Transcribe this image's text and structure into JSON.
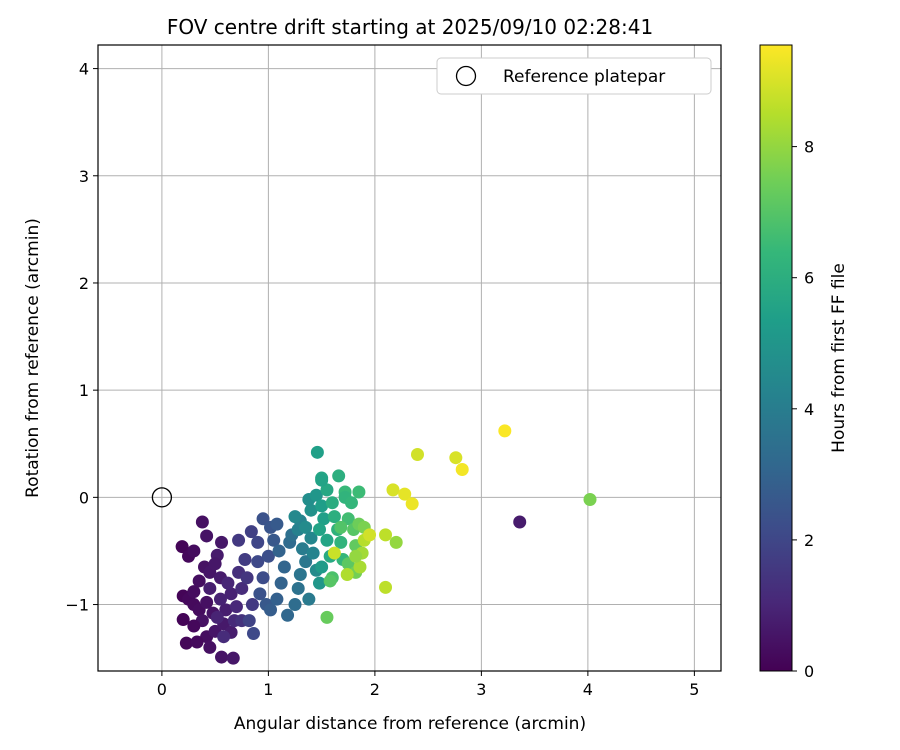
{
  "chart_data": {
    "type": "scatter",
    "title": "FOV centre drift starting at 2025/09/10 02:28:41",
    "xlabel": "Angular distance from reference (arcmin)",
    "ylabel": "Rotation from reference (arcmin)",
    "xlim": [
      -0.6,
      5.25
    ],
    "ylim": [
      -1.62,
      4.22
    ],
    "xticks": [
      0,
      1,
      2,
      3,
      4,
      5
    ],
    "yticks": [
      -1,
      0,
      1,
      2,
      3,
      4
    ],
    "grid": true,
    "legend": {
      "position": "top-right",
      "entries": [
        "Reference platepar"
      ]
    },
    "colorbar": {
      "label": "Hours from first FF file",
      "colormap": "viridis",
      "range": [
        0,
        9.55
      ],
      "ticks": [
        0,
        2,
        4,
        6,
        8
      ]
    },
    "reference_point": {
      "x": 0,
      "y": 0
    },
    "point_colormap_stops": [
      "#440154",
      "#482878",
      "#3e4a89",
      "#31688e",
      "#26828e",
      "#1f9e89",
      "#35b779",
      "#6ece58",
      "#b5de2b",
      "#fde725"
    ],
    "points": [
      {
        "x": 0.19,
        "y": -0.46,
        "h": 0.1
      },
      {
        "x": 0.25,
        "y": -0.55,
        "h": 0.2
      },
      {
        "x": 0.3,
        "y": -0.5,
        "h": 0.3
      },
      {
        "x": 0.38,
        "y": -0.23,
        "h": 0.4
      },
      {
        "x": 0.42,
        "y": -0.36,
        "h": 0.5
      },
      {
        "x": 0.56,
        "y": -0.42,
        "h": 0.6
      },
      {
        "x": 0.52,
        "y": -0.54,
        "h": 0.7
      },
      {
        "x": 0.2,
        "y": -0.92,
        "h": 0.1
      },
      {
        "x": 0.25,
        "y": -0.95,
        "h": 0.2
      },
      {
        "x": 0.3,
        "y": -0.88,
        "h": 0.3
      },
      {
        "x": 0.35,
        "y": -0.78,
        "h": 0.35
      },
      {
        "x": 0.4,
        "y": -0.65,
        "h": 0.45
      },
      {
        "x": 0.45,
        "y": -0.7,
        "h": 0.55
      },
      {
        "x": 0.5,
        "y": -0.62,
        "h": 0.6
      },
      {
        "x": 0.55,
        "y": -0.75,
        "h": 0.7
      },
      {
        "x": 0.3,
        "y": -1.0,
        "h": 0.25
      },
      {
        "x": 0.35,
        "y": -1.05,
        "h": 0.3
      },
      {
        "x": 0.42,
        "y": -0.98,
        "h": 0.4
      },
      {
        "x": 0.48,
        "y": -1.08,
        "h": 0.5
      },
      {
        "x": 0.38,
        "y": -1.15,
        "h": 0.45
      },
      {
        "x": 0.2,
        "y": -1.14,
        "h": 0.1
      },
      {
        "x": 0.3,
        "y": -1.2,
        "h": 0.2
      },
      {
        "x": 0.42,
        "y": -1.3,
        "h": 0.35
      },
      {
        "x": 0.5,
        "y": -1.25,
        "h": 0.55
      },
      {
        "x": 0.58,
        "y": -1.18,
        "h": 0.65
      },
      {
        "x": 0.65,
        "y": -1.26,
        "h": 0.75
      },
      {
        "x": 0.23,
        "y": -1.36,
        "h": 0.15
      },
      {
        "x": 0.33,
        "y": -1.35,
        "h": 0.25
      },
      {
        "x": 0.45,
        "y": -1.4,
        "h": 0.4
      },
      {
        "x": 0.56,
        "y": -1.49,
        "h": 0.5
      },
      {
        "x": 0.67,
        "y": -1.5,
        "h": 0.6
      },
      {
        "x": 0.6,
        "y": -1.05,
        "h": 0.8
      },
      {
        "x": 0.65,
        "y": -0.9,
        "h": 0.9
      },
      {
        "x": 0.62,
        "y": -0.8,
        "h": 1.0
      },
      {
        "x": 0.55,
        "y": -0.95,
        "h": 0.9
      },
      {
        "x": 0.45,
        "y": -0.85,
        "h": 0.8
      },
      {
        "x": 0.52,
        "y": -1.12,
        "h": 0.95
      },
      {
        "x": 0.7,
        "y": -1.02,
        "h": 1.1
      },
      {
        "x": 0.75,
        "y": -0.85,
        "h": 1.2
      },
      {
        "x": 0.72,
        "y": -0.7,
        "h": 1.3
      },
      {
        "x": 0.68,
        "y": -1.15,
        "h": 1.15
      },
      {
        "x": 0.58,
        "y": -1.3,
        "h": 1.2
      },
      {
        "x": 0.75,
        "y": -1.15,
        "h": 1.4
      },
      {
        "x": 0.85,
        "y": -1.0,
        "h": 1.6
      },
      {
        "x": 0.8,
        "y": -0.75,
        "h": 1.5
      },
      {
        "x": 0.78,
        "y": -0.58,
        "h": 1.7
      },
      {
        "x": 0.72,
        "y": -0.4,
        "h": 1.6
      },
      {
        "x": 0.84,
        "y": -0.32,
        "h": 1.8
      },
      {
        "x": 0.9,
        "y": -0.42,
        "h": 2.0
      },
      {
        "x": 0.86,
        "y": -1.27,
        "h": 2.1
      },
      {
        "x": 0.82,
        "y": -1.15,
        "h": 1.9
      },
      {
        "x": 0.9,
        "y": -0.6,
        "h": 2.1
      },
      {
        "x": 0.95,
        "y": -0.75,
        "h": 2.2
      },
      {
        "x": 1.0,
        "y": -0.55,
        "h": 2.3
      },
      {
        "x": 0.95,
        "y": -0.2,
        "h": 2.4
      },
      {
        "x": 1.02,
        "y": -0.28,
        "h": 2.5
      },
      {
        "x": 1.05,
        "y": -0.4,
        "h": 2.6
      },
      {
        "x": 1.08,
        "y": -0.25,
        "h": 2.7
      },
      {
        "x": 0.92,
        "y": -0.9,
        "h": 2.4
      },
      {
        "x": 0.98,
        "y": -1.0,
        "h": 2.6
      },
      {
        "x": 1.02,
        "y": -1.05,
        "h": 2.8
      },
      {
        "x": 1.08,
        "y": -0.95,
        "h": 2.9
      },
      {
        "x": 1.12,
        "y": -0.8,
        "h": 3.0
      },
      {
        "x": 1.15,
        "y": -0.65,
        "h": 3.1
      },
      {
        "x": 1.1,
        "y": -0.5,
        "h": 3.0
      },
      {
        "x": 1.2,
        "y": -0.42,
        "h": 3.3
      },
      {
        "x": 1.22,
        "y": -0.35,
        "h": 3.5
      },
      {
        "x": 1.18,
        "y": -1.1,
        "h": 3.2
      },
      {
        "x": 1.25,
        "y": -1.0,
        "h": 3.4
      },
      {
        "x": 1.28,
        "y": -0.85,
        "h": 3.6
      },
      {
        "x": 1.3,
        "y": -0.72,
        "h": 3.7
      },
      {
        "x": 1.35,
        "y": -0.6,
        "h": 3.8
      },
      {
        "x": 1.38,
        "y": -0.95,
        "h": 3.9
      },
      {
        "x": 1.32,
        "y": -0.48,
        "h": 4.0
      },
      {
        "x": 1.28,
        "y": -0.3,
        "h": 4.2
      },
      {
        "x": 1.3,
        "y": -0.22,
        "h": 4.3
      },
      {
        "x": 1.25,
        "y": -0.18,
        "h": 4.5
      },
      {
        "x": 1.35,
        "y": -0.28,
        "h": 4.6
      },
      {
        "x": 1.4,
        "y": -0.38,
        "h": 4.4
      },
      {
        "x": 1.42,
        "y": -0.52,
        "h": 4.3
      },
      {
        "x": 1.45,
        "y": -0.68,
        "h": 4.6
      },
      {
        "x": 1.48,
        "y": -0.8,
        "h": 5.0
      },
      {
        "x": 1.5,
        "y": -0.65,
        "h": 5.2
      },
      {
        "x": 1.4,
        "y": -0.12,
        "h": 4.8
      },
      {
        "x": 1.38,
        "y": -0.02,
        "h": 4.7
      },
      {
        "x": 1.45,
        "y": 0.02,
        "h": 5.0
      },
      {
        "x": 1.5,
        "y": -0.08,
        "h": 5.3
      },
      {
        "x": 1.52,
        "y": -0.2,
        "h": 5.4
      },
      {
        "x": 1.48,
        "y": -0.3,
        "h": 5.5
      },
      {
        "x": 1.55,
        "y": -0.4,
        "h": 5.6
      },
      {
        "x": 1.58,
        "y": -0.55,
        "h": 5.8
      },
      {
        "x": 1.6,
        "y": -0.05,
        "h": 5.9
      },
      {
        "x": 1.62,
        "y": -0.18,
        "h": 6.0
      },
      {
        "x": 1.65,
        "y": -0.3,
        "h": 6.1
      },
      {
        "x": 1.68,
        "y": -0.42,
        "h": 6.2
      },
      {
        "x": 1.7,
        "y": -0.58,
        "h": 6.3
      },
      {
        "x": 1.72,
        "y": 0.05,
        "h": 6.4
      },
      {
        "x": 1.55,
        "y": 0.07,
        "h": 5.7
      },
      {
        "x": 1.5,
        "y": 0.18,
        "h": 5.6
      },
      {
        "x": 1.46,
        "y": 0.42,
        "h": 5.4
      },
      {
        "x": 1.5,
        "y": 0.16,
        "h": 5.5
      },
      {
        "x": 1.66,
        "y": 0.2,
        "h": 6.0
      },
      {
        "x": 1.72,
        "y": 0.0,
        "h": 6.2
      },
      {
        "x": 1.78,
        "y": -0.05,
        "h": 6.3
      },
      {
        "x": 1.85,
        "y": 0.05,
        "h": 6.5
      },
      {
        "x": 1.75,
        "y": -0.2,
        "h": 6.6
      },
      {
        "x": 1.68,
        "y": -0.28,
        "h": 6.9
      },
      {
        "x": 1.8,
        "y": -0.3,
        "h": 7.0
      },
      {
        "x": 1.85,
        "y": -0.25,
        "h": 7.4
      },
      {
        "x": 1.9,
        "y": -0.28,
        "h": 7.6
      },
      {
        "x": 1.82,
        "y": -0.45,
        "h": 7.2
      },
      {
        "x": 1.88,
        "y": -0.52,
        "h": 8.2
      },
      {
        "x": 1.9,
        "y": -0.4,
        "h": 8.5
      },
      {
        "x": 1.95,
        "y": -0.35,
        "h": 8.9
      },
      {
        "x": 2.1,
        "y": -0.35,
        "h": 8.6
      },
      {
        "x": 2.2,
        "y": -0.42,
        "h": 8.0
      },
      {
        "x": 1.6,
        "y": -0.75,
        "h": 6.8
      },
      {
        "x": 1.75,
        "y": -0.62,
        "h": 7.1
      },
      {
        "x": 1.82,
        "y": -0.7,
        "h": 7.5
      },
      {
        "x": 1.55,
        "y": -1.12,
        "h": 7.3
      },
      {
        "x": 1.58,
        "y": -0.78,
        "h": 7.0
      },
      {
        "x": 1.86,
        "y": -0.65,
        "h": 8.3
      },
      {
        "x": 1.82,
        "y": -0.55,
        "h": 8.0
      },
      {
        "x": 1.62,
        "y": -0.52,
        "h": 8.8
      },
      {
        "x": 1.74,
        "y": -0.72,
        "h": 8.4
      },
      {
        "x": 2.1,
        "y": -0.84,
        "h": 8.6
      },
      {
        "x": 2.17,
        "y": 0.07,
        "h": 9.0
      },
      {
        "x": 2.28,
        "y": 0.03,
        "h": 9.2
      },
      {
        "x": 2.35,
        "y": -0.06,
        "h": 9.3
      },
      {
        "x": 2.4,
        "y": 0.4,
        "h": 8.9
      },
      {
        "x": 2.76,
        "y": 0.37,
        "h": 9.0
      },
      {
        "x": 2.82,
        "y": 0.26,
        "h": 9.4
      },
      {
        "x": 3.22,
        "y": 0.62,
        "h": 9.5
      },
      {
        "x": 4.02,
        "y": -0.02,
        "h": 7.6
      },
      {
        "x": 3.36,
        "y": -0.23,
        "h": 0.7
      }
    ]
  }
}
